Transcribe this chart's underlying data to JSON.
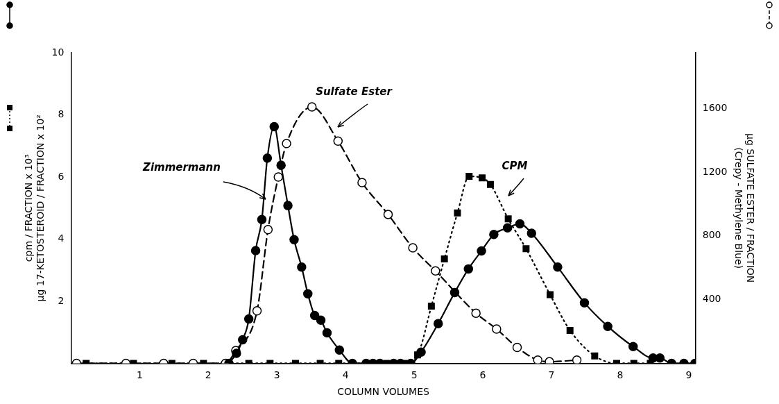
{
  "chart_data": {
    "type": "line",
    "xlabel": "COLUMN VOLUMES",
    "ylabel": "cpm / FRACTION x 10³\nμg 17-KETOSTEROID / FRACTION x 10²",
    "y2label": "μg SULFATE ESTER / FRACTION\n(Crepy - Methylene Blue)",
    "xlim": [
      0,
      9.1
    ],
    "xticks": [
      1,
      2,
      3,
      4,
      5,
      6,
      7,
      8,
      9
    ],
    "ylim": [
      0,
      10
    ],
    "yticks": [
      2,
      4,
      6,
      8,
      10
    ],
    "y2lim": [
      0,
      1950
    ],
    "y2ticks": [
      400,
      800,
      1200,
      1600
    ],
    "legend": false,
    "grid": false,
    "series": [
      {
        "name": "Zimmermann",
        "color": "#000000",
        "marker": "circle",
        "line_style": "solid",
        "x": [
          2.3,
          2.41,
          2.5,
          2.59,
          2.69,
          2.78,
          2.86,
          2.96,
          3.06,
          3.16,
          3.25,
          3.36,
          3.45,
          3.55,
          3.64,
          3.73,
          3.91,
          4.1,
          4.3,
          4.4,
          4.5,
          4.7,
          4.8,
          4.95,
          5.1,
          5.35,
          5.59,
          5.79,
          5.98,
          6.16,
          6.36,
          6.54,
          6.71,
          7.09,
          7.48,
          7.82,
          8.19,
          8.48,
          8.58,
          8.75,
          8.93,
          9.09
        ],
        "values": [
          0,
          0.32,
          0.76,
          1.43,
          3.63,
          4.63,
          6.61,
          7.62,
          6.38,
          5.08,
          3.98,
          3.1,
          2.24,
          1.54,
          1.39,
          0.98,
          0.43,
          0,
          0,
          0,
          0,
          0,
          0,
          0,
          0.36,
          1.28,
          2.28,
          3.04,
          3.62,
          4.15,
          4.36,
          4.49,
          4.19,
          3.1,
          1.95,
          1.19,
          0.54,
          0.17,
          0.17,
          0,
          0,
          0
        ]
      },
      {
        "name": "Sulfate Ester",
        "color": "#000000",
        "marker": "circle",
        "line_style": "dashed",
        "axis": "y2",
        "x": [
          0.08,
          0.8,
          1.35,
          1.78,
          2.25,
          2.4,
          2.71,
          2.87,
          3.02,
          3.14,
          3.51,
          3.89,
          4.24,
          4.62,
          4.98,
          5.31,
          5.9,
          6.2,
          6.5,
          6.8,
          6.97,
          7.37
        ],
        "values": [
          0,
          0,
          0,
          0,
          0,
          80,
          330,
          840,
          1170,
          1380,
          1610,
          1395,
          1135,
          935,
          725,
          580,
          315,
          215,
          100,
          20,
          10,
          20
        ]
      },
      {
        "name": "CPM",
        "color": "#000000",
        "marker": "square",
        "line_style": "dotted",
        "x": [
          0.22,
          0.91,
          1.47,
          1.93,
          2.59,
          2.9,
          3.27,
          3.63,
          3.9,
          4.3,
          4.6,
          4.85,
          5.05,
          5.25,
          5.44,
          5.63,
          5.8,
          5.99,
          6.11,
          6.37,
          6.63,
          6.98,
          7.27,
          7.63,
          7.95,
          8.2,
          8.44
        ],
        "values": [
          0,
          0,
          0,
          0,
          0,
          0,
          0,
          0,
          0,
          0,
          0,
          0,
          0.27,
          1.84,
          3.36,
          4.84,
          6.02,
          5.97,
          5.76,
          4.65,
          3.69,
          2.21,
          1.06,
          0.24,
          0,
          0,
          0
        ]
      }
    ]
  }
}
